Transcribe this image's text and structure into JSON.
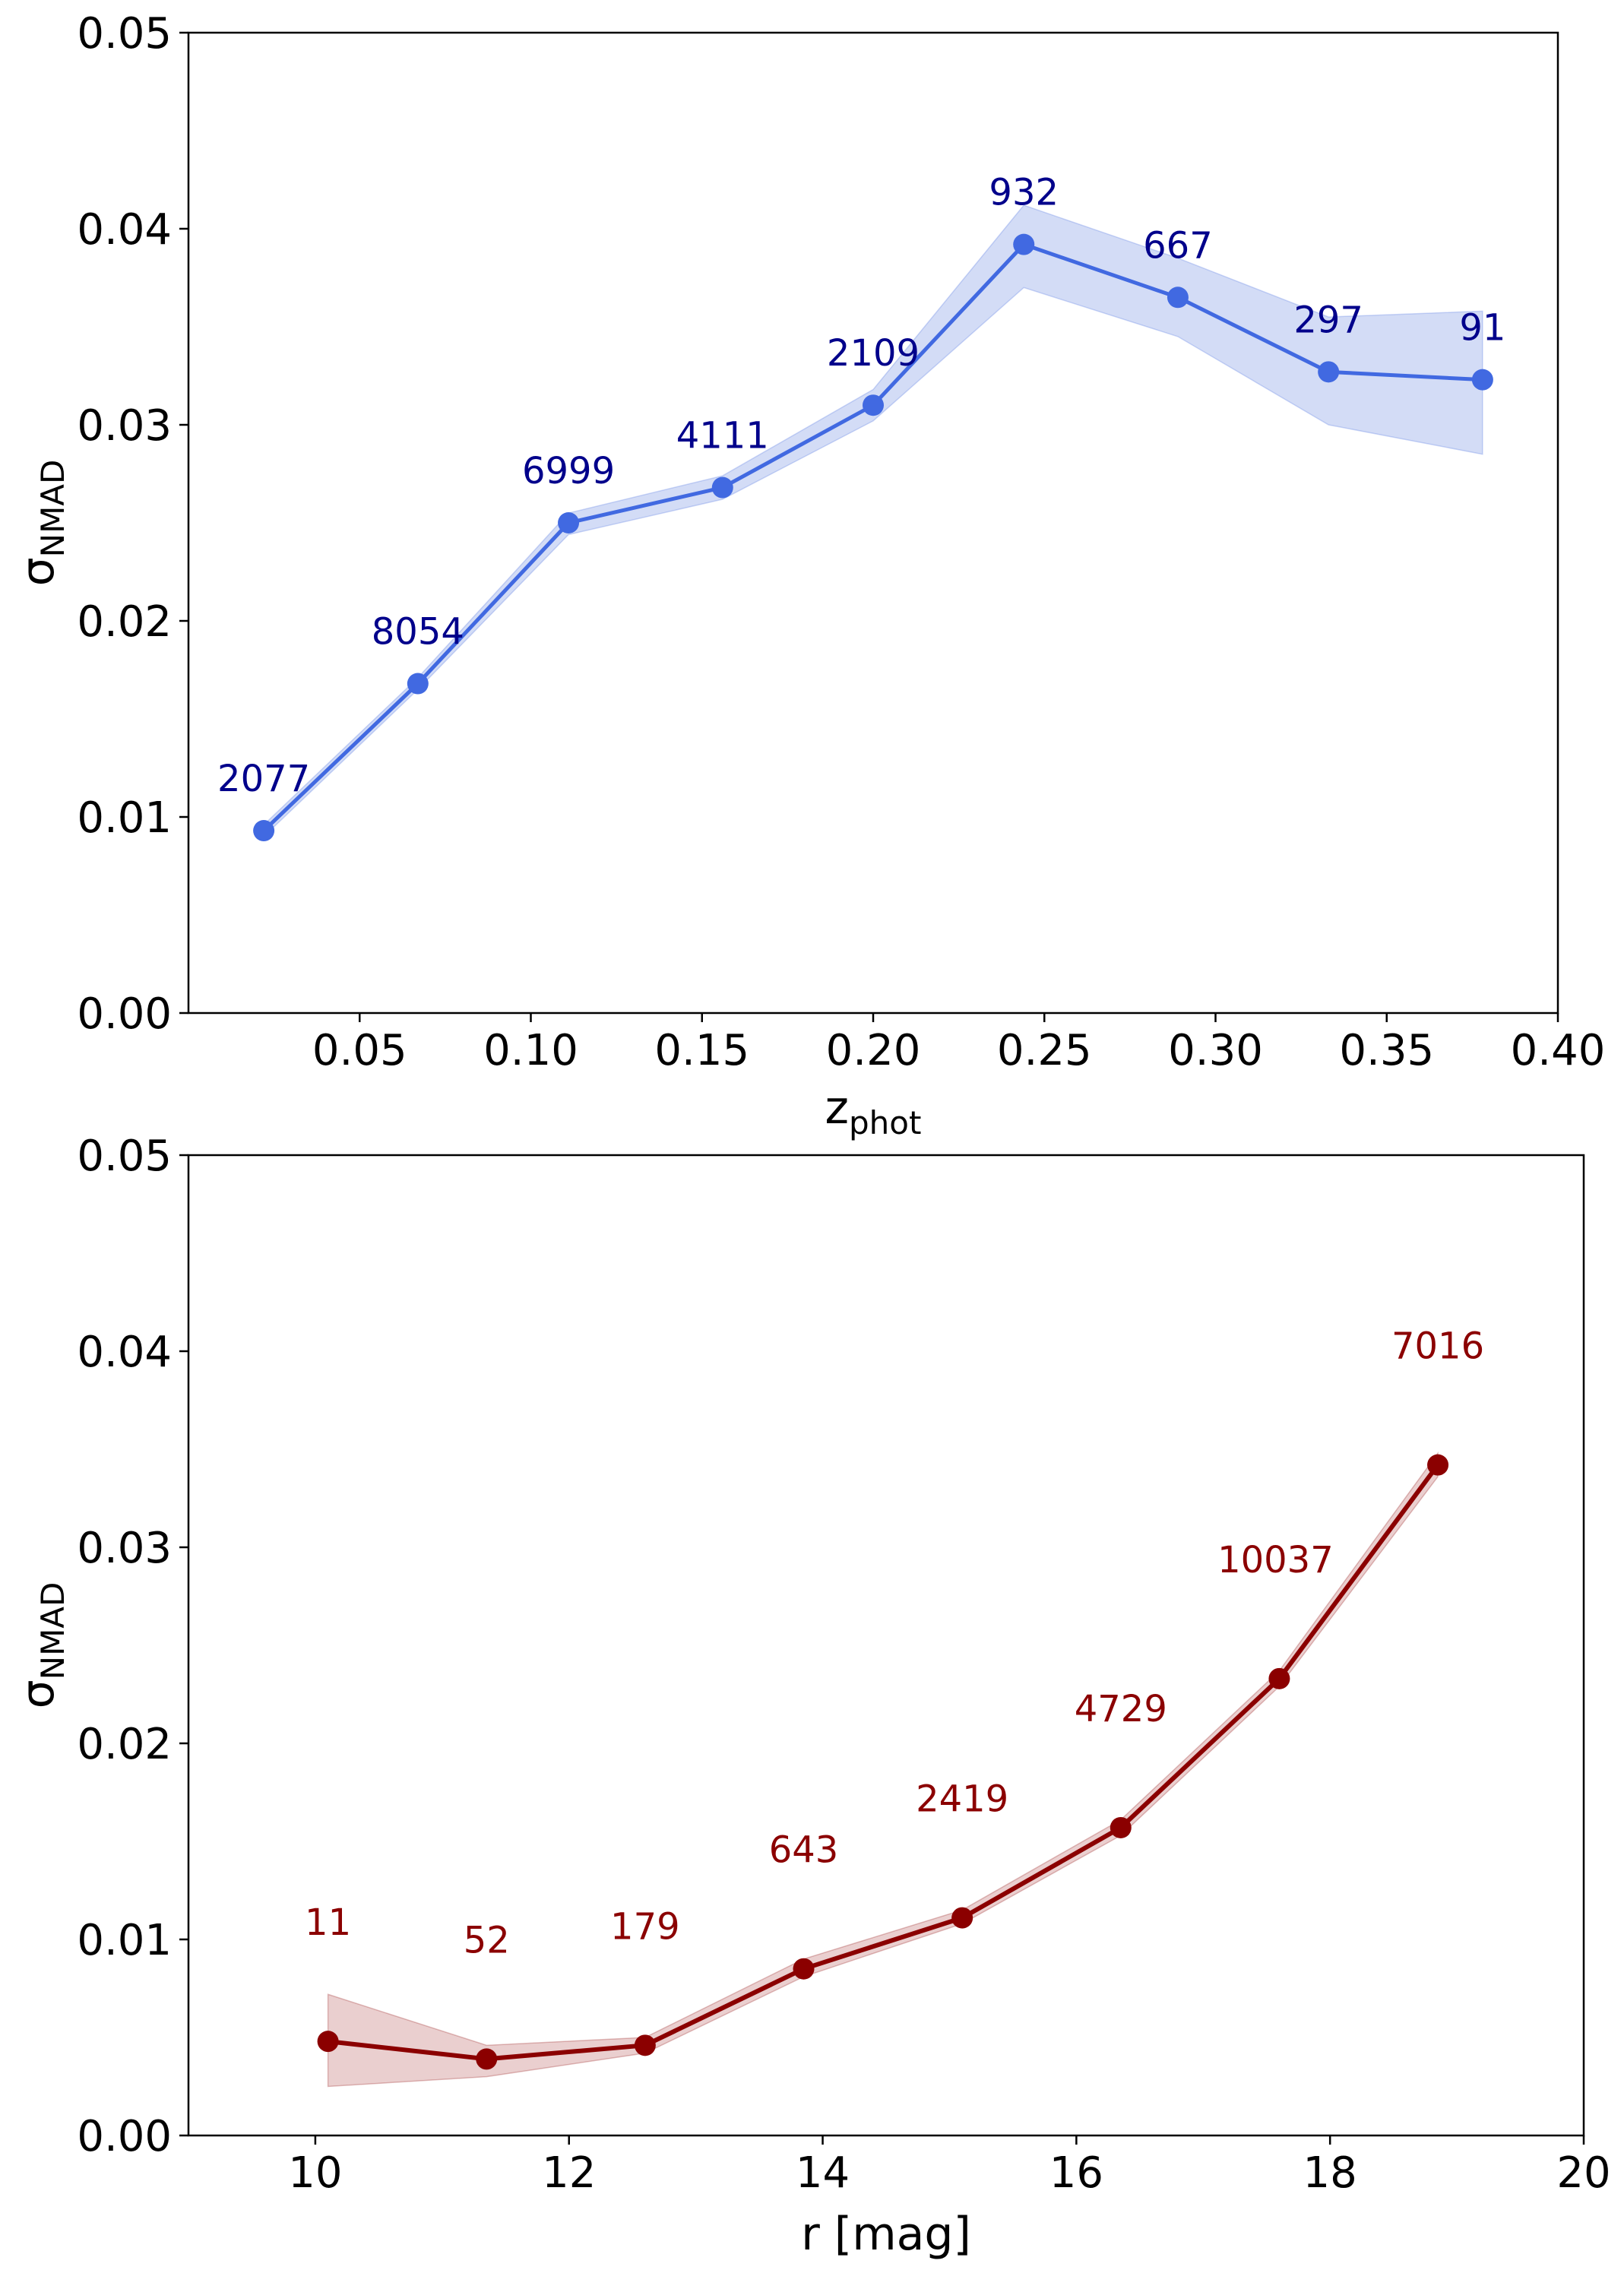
{
  "chart_data": [
    {
      "type": "line",
      "title": "",
      "xlabel_main": "z",
      "xlabel_sub": "phot",
      "ylabel_main": "σ",
      "ylabel_sub": "NMAD",
      "xlim": [
        0.0,
        0.4
      ],
      "ylim": [
        0.0,
        0.05
      ],
      "xticks": [
        0.05,
        0.1,
        0.15,
        0.2,
        0.25,
        0.3,
        0.35,
        0.4
      ],
      "xtick_labels": [
        "0.05",
        "0.10",
        "0.15",
        "0.20",
        "0.25",
        "0.30",
        "0.35",
        "0.40"
      ],
      "yticks": [
        0.0,
        0.01,
        0.02,
        0.03,
        0.04,
        0.05
      ],
      "ytick_labels": [
        "0.00",
        "0.01",
        "0.02",
        "0.03",
        "0.04",
        "0.05"
      ],
      "grid": false,
      "color": "#4169e1",
      "band_color": "#aec0ee",
      "label_color": "#00008b",
      "x": [
        0.022,
        0.067,
        0.111,
        0.156,
        0.2,
        0.244,
        0.289,
        0.333,
        0.378
      ],
      "y": [
        0.0093,
        0.0168,
        0.025,
        0.0268,
        0.031,
        0.0392,
        0.0365,
        0.0327,
        0.0323
      ],
      "y_lower": [
        0.009,
        0.0165,
        0.0244,
        0.0262,
        0.0302,
        0.037,
        0.0345,
        0.03,
        0.0285
      ],
      "y_upper": [
        0.0096,
        0.0171,
        0.0255,
        0.0274,
        0.0318,
        0.0412,
        0.0385,
        0.0355,
        0.0358
      ],
      "annotations": [
        "2077",
        "8054",
        "6999",
        "4111",
        "2109",
        "932",
        "667",
        "297",
        "91"
      ]
    },
    {
      "type": "line",
      "title": "",
      "xlabel": "r [mag]",
      "ylabel_main": "σ",
      "ylabel_sub": "NMAD",
      "xlim": [
        9.0,
        20.0
      ],
      "ylim": [
        0.0,
        0.05
      ],
      "xticks": [
        10,
        12,
        14,
        16,
        18,
        20
      ],
      "xtick_labels": [
        "10",
        "12",
        "14",
        "16",
        "18",
        "20"
      ],
      "yticks": [
        0.0,
        0.01,
        0.02,
        0.03,
        0.04,
        0.05
      ],
      "ytick_labels": [
        "0.00",
        "0.01",
        "0.02",
        "0.03",
        "0.04",
        "0.05"
      ],
      "grid": false,
      "color": "#8b0000",
      "band_color": "#d8a8a8",
      "label_color": "#8b0000",
      "x": [
        10.1,
        11.35,
        12.6,
        13.85,
        15.1,
        16.35,
        17.6,
        18.85
      ],
      "y": [
        0.0048,
        0.0039,
        0.0046,
        0.0085,
        0.0111,
        0.0157,
        0.0233,
        0.0342
      ],
      "y_lower": [
        0.0025,
        0.003,
        0.0042,
        0.0081,
        0.0108,
        0.0153,
        0.0229,
        0.0336
      ],
      "y_upper": [
        0.0072,
        0.0046,
        0.005,
        0.009,
        0.0115,
        0.0161,
        0.0237,
        0.0348
      ],
      "annotations": [
        "11",
        "52",
        "179",
        "643",
        "2419",
        "4729",
        "10037",
        "7016"
      ]
    }
  ]
}
